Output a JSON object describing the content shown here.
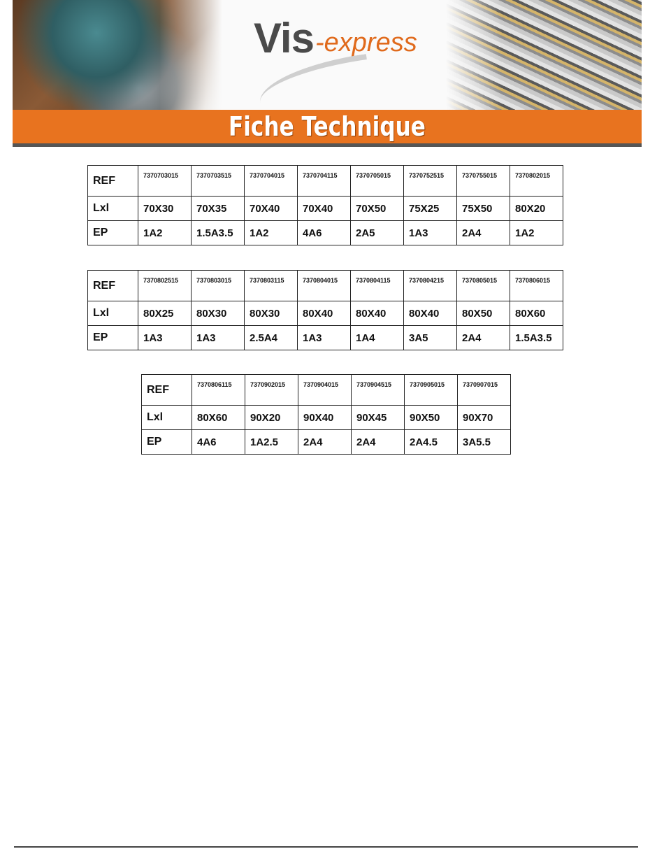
{
  "header": {
    "logo_text": "Vis-express",
    "logo_part1": "Vis",
    "logo_part2": "-express",
    "banner_title": "Fiche Technique",
    "accent_color": "#e8731f"
  },
  "tables": [
    {
      "row_labels": [
        "REF",
        "Lxl",
        "EP"
      ],
      "ref": [
        "7370703015",
        "7370703515",
        "7370704015",
        "7370704115",
        "7370705015",
        "7370752515",
        "7370755015",
        "7370802015"
      ],
      "lxl": [
        "70X30",
        "70X35",
        "70X40",
        "70X40",
        "70X50",
        "75X25",
        "75X50",
        "80X20"
      ],
      "ep": [
        "1A2",
        "1.5A3.5",
        "1A2",
        "4A6",
        "2A5",
        "1A3",
        "2A4",
        "1A2"
      ]
    },
    {
      "row_labels": [
        "REF",
        "Lxl",
        "EP"
      ],
      "ref": [
        "7370802515",
        "7370803015",
        "7370803115",
        "7370804015",
        "7370804115",
        "7370804215",
        "7370805015",
        "7370806015"
      ],
      "lxl": [
        "80X25",
        "80X30",
        "80X30",
        "80X40",
        "80X40",
        "80X40",
        "80X50",
        "80X60"
      ],
      "ep": [
        "1A3",
        "1A3",
        "2.5A4",
        "1A3",
        "1A4",
        "3A5",
        "2A4",
        "1.5A3.5"
      ]
    },
    {
      "row_labels": [
        "REF",
        "Lxl",
        "EP"
      ],
      "ref": [
        "7370806115",
        "7370902015",
        "7370904015",
        "7370904515",
        "7370905015",
        "7370907015"
      ],
      "lxl": [
        "80X60",
        "90X20",
        "90X40",
        "90X45",
        "90X50",
        "90X70"
      ],
      "ep": [
        "4A6",
        "1A2.5",
        "2A4",
        "2A4",
        "2A4.5",
        "3A5.5"
      ]
    }
  ]
}
